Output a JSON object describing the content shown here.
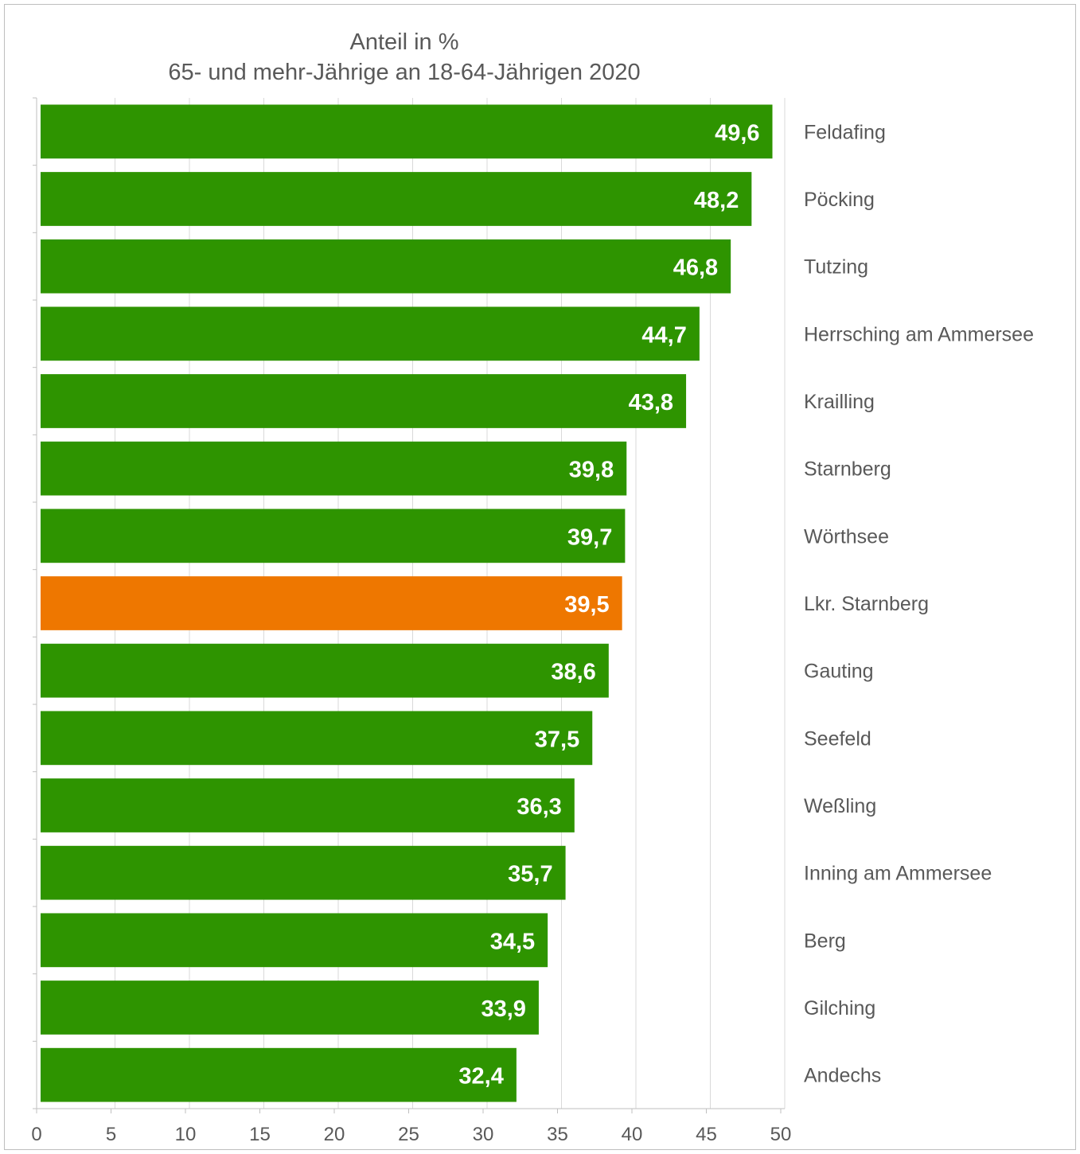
{
  "chart_data": {
    "type": "bar",
    "orientation": "horizontal",
    "title_line1": "Anteil in %",
    "title_line2": "65- und mehr-Jährige an 18-64-Jährigen 2020",
    "xlabel": "",
    "ylabel": "",
    "xlim": [
      0,
      50
    ],
    "xticks": [
      "0",
      "5",
      "10",
      "15",
      "20",
      "25",
      "30",
      "35",
      "40",
      "45",
      "50"
    ],
    "grid": true,
    "categories": [
      "Feldafing",
      "Pöcking",
      "Tutzing",
      "Herrsching am Ammersee",
      "Krailling",
      "Starnberg",
      "Wörthsee",
      "Lkr. Starnberg",
      "Gauting",
      "Seefeld",
      "Weßling",
      "Inning am Ammersee",
      "Berg",
      "Gilching",
      "Andechs"
    ],
    "values": [
      49.6,
      48.2,
      46.8,
      44.7,
      43.8,
      39.8,
      39.7,
      39.5,
      38.6,
      37.5,
      36.3,
      35.7,
      34.5,
      33.9,
      32.4
    ],
    "value_labels": [
      "49,6",
      "48,2",
      "46,8",
      "44,7",
      "43,8",
      "39,8",
      "39,7",
      "39,5",
      "38,6",
      "37,5",
      "36,3",
      "35,7",
      "34,5",
      "33,9",
      "32,4"
    ],
    "highlight_category": "Lkr. Starnberg",
    "colors": {
      "bar": "#2e9400",
      "highlight": "#ee7700",
      "label": "#ffffff",
      "text": "#595959",
      "grid": "#d9d9d9",
      "axis": "#bfbfbf"
    }
  }
}
